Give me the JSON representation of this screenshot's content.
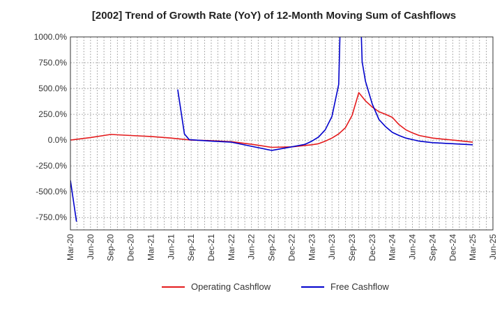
{
  "chart_data": {
    "type": "line",
    "title": "[2002]  Trend of Growth Rate (YoY) of 12-Month Moving Sum of Cashflows",
    "xlabel": "",
    "ylabel": "",
    "ylim": [
      -870,
      1000
    ],
    "y_ticks": [
      1000,
      750,
      500,
      250,
      0,
      -250,
      -500,
      -750
    ],
    "y_tick_labels": [
      "1000.0%",
      "750.0%",
      "500.0%",
      "250.0%",
      "0.0%",
      "-250.0%",
      "-500.0%",
      "-750.0%"
    ],
    "x_range_months": [
      0,
      63
    ],
    "x_ticks": [
      0,
      3,
      6,
      9,
      12,
      15,
      18,
      21,
      24,
      27,
      30,
      33,
      36,
      39,
      42,
      45,
      48,
      51,
      54,
      57,
      60,
      63
    ],
    "x_tick_labels": [
      "Mar-20",
      "Jun-20",
      "Sep-20",
      "Dec-20",
      "Mar-21",
      "Jun-21",
      "Sep-21",
      "Dec-21",
      "Mar-22",
      "Jun-22",
      "Sep-22",
      "Dec-22",
      "Mar-23",
      "Jun-23",
      "Sep-23",
      "Dec-23",
      "Mar-24",
      "Jun-24",
      "Sep-24",
      "Dec-24",
      "Mar-25",
      "Jun-25"
    ],
    "grid": true,
    "legend_position": "bottom",
    "series": [
      {
        "name": "Operating Cashflow",
        "color": "#e41a1c",
        "points": [
          [
            0,
            0
          ],
          [
            3,
            25
          ],
          [
            6,
            55
          ],
          [
            9,
            45
          ],
          [
            12,
            35
          ],
          [
            15,
            20
          ],
          [
            18,
            0
          ],
          [
            21,
            -5
          ],
          [
            24,
            -15
          ],
          [
            27,
            -40
          ],
          [
            30,
            -70
          ],
          [
            33,
            -65
          ],
          [
            36,
            -45
          ],
          [
            37,
            -35
          ],
          [
            38,
            -10
          ],
          [
            39,
            20
          ],
          [
            40,
            60
          ],
          [
            41,
            120
          ],
          [
            42,
            240
          ],
          [
            43,
            460
          ],
          [
            44,
            380
          ],
          [
            45,
            320
          ],
          [
            46,
            275
          ],
          [
            47,
            250
          ],
          [
            48,
            220
          ],
          [
            49,
            150
          ],
          [
            50,
            100
          ],
          [
            51,
            70
          ],
          [
            52,
            45
          ],
          [
            54,
            20
          ],
          [
            57,
            0
          ],
          [
            60,
            -20
          ]
        ]
      },
      {
        "name": "Free Cashflow",
        "color": "#0000cc",
        "segments": [
          [
            [
              0,
              -390
            ],
            [
              0.9,
              -790
            ]
          ],
          [
            [
              16,
              490
            ],
            [
              17,
              60
            ],
            [
              17.7,
              5
            ],
            [
              21,
              -10
            ],
            [
              24,
              -20
            ],
            [
              27,
              -60
            ],
            [
              30,
              -100
            ],
            [
              33,
              -65
            ],
            [
              35,
              -40
            ],
            [
              36,
              -10
            ],
            [
              37,
              30
            ],
            [
              38,
              100
            ],
            [
              39,
              230
            ],
            [
              40,
              540
            ],
            [
              40.5,
              1800
            ],
            [
              43,
              1800
            ],
            [
              43.5,
              760
            ],
            [
              44,
              570
            ],
            [
              45,
              350
            ],
            [
              46,
              200
            ],
            [
              47,
              130
            ],
            [
              48,
              75
            ],
            [
              49,
              45
            ],
            [
              50,
              20
            ],
            [
              51,
              5
            ],
            [
              52,
              -10
            ],
            [
              54,
              -25
            ],
            [
              57,
              -35
            ],
            [
              60,
              -45
            ]
          ]
        ]
      }
    ]
  }
}
